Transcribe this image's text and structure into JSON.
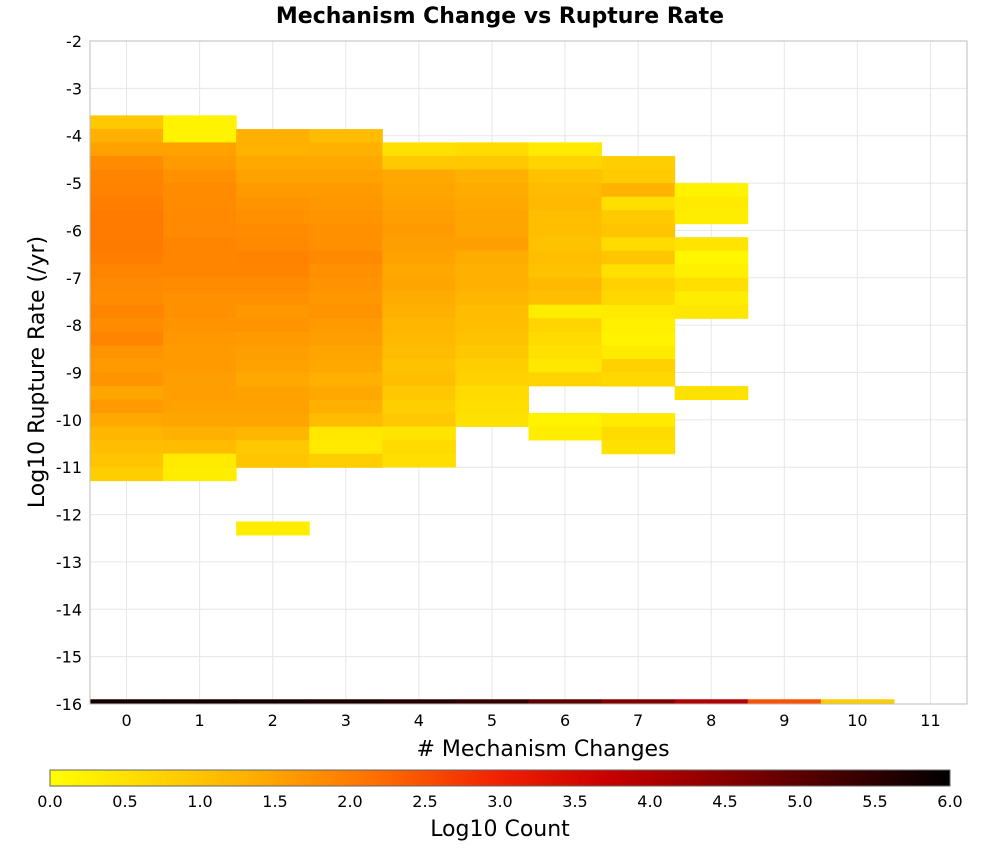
{
  "chart_data": {
    "type": "heatmap",
    "title": "Mechanism Change vs Rupture Rate",
    "xlabel": "# Mechanism Changes",
    "ylabel": "Log10 Rupture Rate (/yr)",
    "xlim": [
      -0.5,
      11.5
    ],
    "ylim": [
      -16,
      -2
    ],
    "x_ticks": [
      "0",
      "1",
      "2",
      "3",
      "4",
      "5",
      "6",
      "7",
      "8",
      "9",
      "10",
      "11"
    ],
    "y_ticks": [
      "-2",
      "-3",
      "-4",
      "-5",
      "-6",
      "-7",
      "-8",
      "-9",
      "-10",
      "-11",
      "-12",
      "-13",
      "-14",
      "-15",
      "-16"
    ],
    "grid": true,
    "colorbar": {
      "label": "Log10 Count",
      "range": [
        0,
        6
      ],
      "ticks": [
        "0.0",
        "0.5",
        "1.0",
        "1.5",
        "2.0",
        "2.5",
        "3.0",
        "3.5",
        "4.0",
        "4.5",
        "5.0",
        "5.5",
        "6.0"
      ],
      "colors": [
        "#ffff00",
        "#ffa500",
        "#ff2000",
        "#cc0000",
        "#800000",
        "#000000"
      ]
    },
    "cells": {
      "bin_width": 0.2857,
      "columns": [
        {
          "x": 0,
          "y_top": -3.57,
          "values": [
            0.9,
            1.3,
            1.5,
            1.8,
            1.9,
            1.95,
            2.0,
            2.05,
            2.05,
            2.05,
            2.0,
            1.9,
            1.85,
            1.8,
            1.9,
            1.8,
            1.9,
            1.7,
            1.6,
            1.7,
            1.45,
            1.6,
            1.4,
            1.2,
            1.05,
            0.95,
            0.8
          ]
        },
        {
          "x": 1,
          "y_top": -3.57,
          "values": [
            0.2,
            0.2,
            1.5,
            1.6,
            1.75,
            1.8,
            1.8,
            1.85,
            1.85,
            1.9,
            1.9,
            1.9,
            1.8,
            1.75,
            1.75,
            1.7,
            1.65,
            1.6,
            1.6,
            1.55,
            1.55,
            1.5,
            1.45,
            1.3,
            1.1,
            0.35,
            0.3
          ]
        },
        {
          "x": 2,
          "y_top": -3.86,
          "values": [
            1.3,
            1.25,
            1.4,
            1.5,
            1.6,
            1.7,
            1.75,
            1.8,
            1.85,
            1.95,
            1.9,
            1.8,
            1.75,
            1.65,
            1.7,
            1.6,
            1.55,
            1.5,
            1.4,
            1.5,
            1.5,
            1.45,
            1.2,
            0.9,
            0.95,
            null,
            null,
            null,
            null,
            0.3
          ]
        },
        {
          "x": 3,
          "y_top": -3.86,
          "values": [
            1.1,
            1.3,
            1.4,
            1.5,
            1.6,
            1.65,
            1.7,
            1.75,
            1.75,
            1.85,
            1.75,
            1.7,
            1.65,
            1.7,
            1.6,
            1.55,
            1.45,
            1.4,
            1.3,
            1.4,
            1.3,
            1.1,
            0.4,
            0.35,
            0.8
          ]
        },
        {
          "x": 4,
          "y_top": -4.14,
          "values": [
            0.5,
            0.9,
            1.4,
            1.45,
            1.5,
            1.55,
            1.6,
            1.55,
            1.5,
            1.4,
            1.45,
            1.35,
            1.3,
            1.2,
            1.15,
            1.1,
            1.0,
            1.05,
            0.9,
            0.8,
            0.9,
            0.45,
            0.6,
            0.55
          ]
        },
        {
          "x": 5,
          "y_top": -4.14,
          "values": [
            0.6,
            0.9,
            1.3,
            1.35,
            1.4,
            1.45,
            1.45,
            1.55,
            1.35,
            1.3,
            1.3,
            1.2,
            1.1,
            1.05,
            1.0,
            0.9,
            0.8,
            0.75,
            0.6,
            0.55,
            0.5
          ]
        },
        {
          "x": 6,
          "y_top": -4.14,
          "values": [
            0.35,
            0.7,
            1.0,
            1.1,
            1.15,
            1.05,
            1.05,
            1.0,
            1.05,
            1.0,
            1.15,
            1.05,
            0.3,
            0.7,
            0.6,
            0.5,
            0.4,
            0.7,
            null,
            null,
            0.2,
            0.3
          ]
        },
        {
          "x": 7,
          "y_top": -4.43,
          "values": [
            0.8,
            0.85,
            1.25,
            0.55,
            0.85,
            0.95,
            0.6,
            0.95,
            0.5,
            0.75,
            0.65,
            0.35,
            0.25,
            0.2,
            0.35,
            0.75,
            0.65,
            null,
            null,
            0.35,
            0.6,
            0.5
          ]
        },
        {
          "x": 8,
          "y_top": -5.0,
          "values": [
            0.2,
            0.35,
            0.3,
            null,
            0.45,
            0.15,
            0.25,
            0.55,
            0.3,
            0.4,
            null,
            null,
            null,
            null,
            null,
            0.5
          ]
        },
        {
          "x": 9,
          "y_top": null,
          "values": []
        },
        {
          "x": 10,
          "y_top": null,
          "values": []
        },
        {
          "x": 11,
          "y_top": null,
          "values": []
        }
      ]
    },
    "bottom_row": {
      "y": -15.9,
      "values": [
        5.8,
        5.8,
        5.75,
        5.7,
        5.6,
        5.4,
        5.0,
        4.6,
        4.0,
        2.5,
        0.8,
        null
      ]
    }
  }
}
